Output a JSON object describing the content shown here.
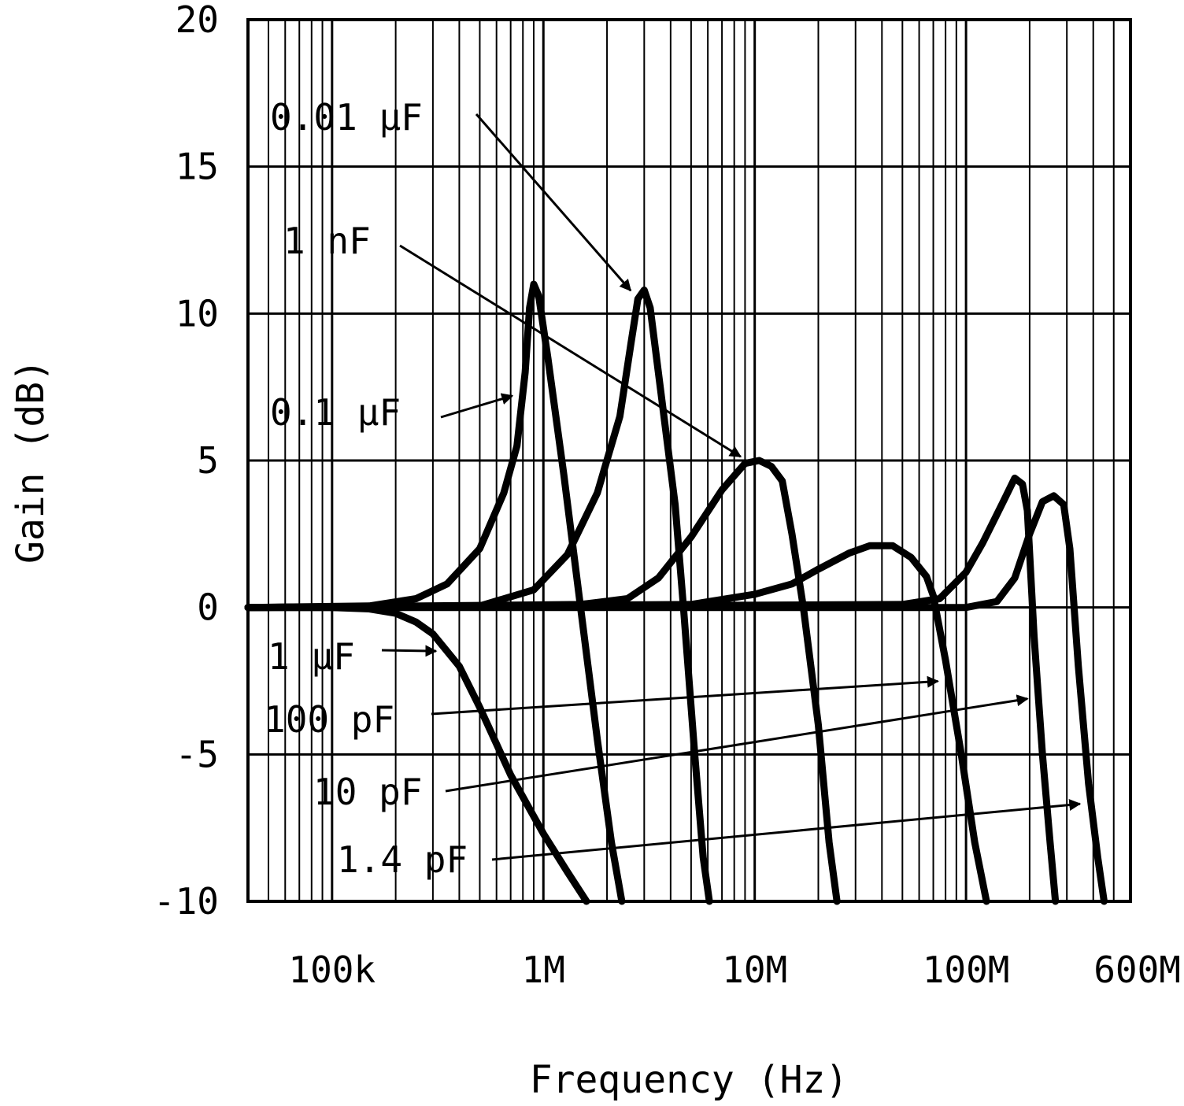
{
  "chart_data": {
    "type": "line",
    "xlabel": "Frequency (Hz)",
    "ylabel": "Gain (dB)",
    "x_scale": "log",
    "xlim": [
      40000,
      600000000
    ],
    "ylim": [
      -10,
      20
    ],
    "grid": true,
    "x_ticks": [
      {
        "value": 100000,
        "label": "100k"
      },
      {
        "value": 1000000,
        "label": "1M"
      },
      {
        "value": 10000000,
        "label": "10M"
      },
      {
        "value": 100000000,
        "label": "100M"
      },
      {
        "value": 600000000,
        "label": "600M"
      }
    ],
    "y_ticks": [
      {
        "value": 20,
        "label": "20"
      },
      {
        "value": 15,
        "label": "15"
      },
      {
        "value": 10,
        "label": "10"
      },
      {
        "value": 5,
        "label": "5"
      },
      {
        "value": 0,
        "label": "0"
      },
      {
        "value": -5,
        "label": "-5"
      },
      {
        "value": -10,
        "label": "-10"
      }
    ],
    "line_color": "#000000",
    "series": [
      {
        "name": "1 µF",
        "points": [
          [
            40000,
            0
          ],
          [
            100000,
            0
          ],
          [
            150000,
            -0.05
          ],
          [
            200000,
            -0.2
          ],
          [
            250000,
            -0.5
          ],
          [
            300000,
            -0.9
          ],
          [
            400000,
            -2.0
          ],
          [
            500000,
            -3.4
          ],
          [
            700000,
            -5.7
          ],
          [
            1000000,
            -7.7
          ],
          [
            1300000,
            -9.0
          ],
          [
            1600000,
            -10
          ]
        ]
      },
      {
        "name": "0.1 µF",
        "points": [
          [
            40000,
            0
          ],
          [
            150000,
            0.05
          ],
          [
            250000,
            0.3
          ],
          [
            350000,
            0.8
          ],
          [
            500000,
            2.0
          ],
          [
            650000,
            3.9
          ],
          [
            750000,
            5.5
          ],
          [
            820000,
            8.0
          ],
          [
            860000,
            10.2
          ],
          [
            900000,
            11.0
          ],
          [
            950000,
            10.6
          ],
          [
            1050000,
            8.5
          ],
          [
            1250000,
            4.5
          ],
          [
            1500000,
            0
          ],
          [
            1800000,
            -4.5
          ],
          [
            2100000,
            -8.0
          ],
          [
            2350000,
            -10
          ]
        ]
      },
      {
        "name": "0.01 µF",
        "points": [
          [
            40000,
            0
          ],
          [
            500000,
            0.05
          ],
          [
            900000,
            0.6
          ],
          [
            1300000,
            1.8
          ],
          [
            1800000,
            3.9
          ],
          [
            2300000,
            6.5
          ],
          [
            2600000,
            9.0
          ],
          [
            2800000,
            10.5
          ],
          [
            3000000,
            10.8
          ],
          [
            3200000,
            10.2
          ],
          [
            3500000,
            8.0
          ],
          [
            4200000,
            3.5
          ],
          [
            4600000,
            0
          ],
          [
            5200000,
            -5.0
          ],
          [
            5700000,
            -8.5
          ],
          [
            6100000,
            -10
          ]
        ]
      },
      {
        "name": "1 nF",
        "points": [
          [
            40000,
            0
          ],
          [
            1500000,
            0.1
          ],
          [
            2500000,
            0.3
          ],
          [
            3500000,
            1.0
          ],
          [
            5000000,
            2.4
          ],
          [
            7000000,
            4.0
          ],
          [
            9000000,
            4.9
          ],
          [
            10500000,
            5.0
          ],
          [
            12000000,
            4.8
          ],
          [
            13500000,
            4.3
          ],
          [
            15000000,
            2.5
          ],
          [
            17000000,
            0
          ],
          [
            20000000,
            -4.0
          ],
          [
            22500000,
            -8.0
          ],
          [
            24500000,
            -10
          ]
        ]
      },
      {
        "name": "100 pF",
        "points": [
          [
            40000,
            0
          ],
          [
            5000000,
            0.1
          ],
          [
            10000000,
            0.45
          ],
          [
            15000000,
            0.8
          ],
          [
            20000000,
            1.3
          ],
          [
            28000000,
            1.85
          ],
          [
            35000000,
            2.1
          ],
          [
            45000000,
            2.1
          ],
          [
            55000000,
            1.7
          ],
          [
            65000000,
            1.05
          ],
          [
            70000000,
            0.4
          ],
          [
            80000000,
            -1.8
          ],
          [
            95000000,
            -5.0
          ],
          [
            110000000,
            -8.0
          ],
          [
            125000000,
            -10
          ]
        ]
      },
      {
        "name": "10 pF",
        "points": [
          [
            40000,
            0
          ],
          [
            50000000,
            0.1
          ],
          [
            75000000,
            0.3
          ],
          [
            100000000,
            1.2
          ],
          [
            120000000,
            2.2
          ],
          [
            150000000,
            3.6
          ],
          [
            170000000,
            4.4
          ],
          [
            185000000,
            4.2
          ],
          [
            195000000,
            3.3
          ],
          [
            210000000,
            -1.0
          ],
          [
            230000000,
            -5.0
          ],
          [
            250000000,
            -8.0
          ],
          [
            265000000,
            -10
          ]
        ]
      },
      {
        "name": "1.4 pF",
        "points": [
          [
            40000,
            0
          ],
          [
            100000000,
            0
          ],
          [
            140000000,
            0.2
          ],
          [
            170000000,
            1.0
          ],
          [
            200000000,
            2.5
          ],
          [
            230000000,
            3.6
          ],
          [
            260000000,
            3.8
          ],
          [
            290000000,
            3.5
          ],
          [
            310000000,
            2.0
          ],
          [
            340000000,
            -2.0
          ],
          [
            380000000,
            -6.0
          ],
          [
            420000000,
            -8.5
          ],
          [
            450000000,
            -10
          ]
        ]
      }
    ],
    "annotations": [
      {
        "label": "0.01 µF",
        "series": "0.01 µF"
      },
      {
        "label": "1 nF",
        "series": "1 nF"
      },
      {
        "label": "0.1 µF",
        "series": "0.1 µF"
      },
      {
        "label": "1 µF",
        "series": "1 µF"
      },
      {
        "label": "100 pF",
        "series": "100 pF"
      },
      {
        "label": "10 pF",
        "series": "10 pF"
      },
      {
        "label": "1.4 pF",
        "series": "1.4 pF"
      }
    ]
  }
}
